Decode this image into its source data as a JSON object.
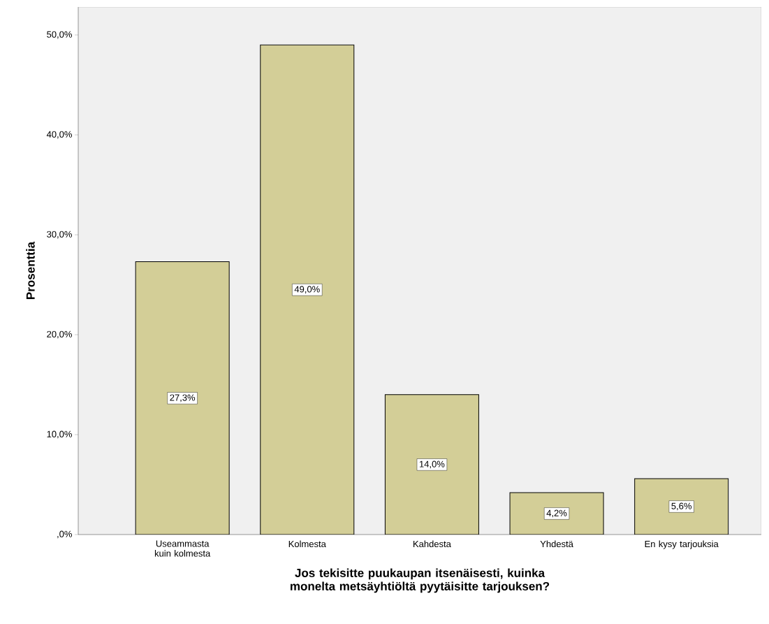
{
  "chart_data": {
    "type": "bar",
    "xlabel": "Jos tekisitte puukaupan itsenäisesti, kuinka monelta metsäyhtiöltä pyytäisitte tarjouksen?",
    "ylabel": "Prosenttia",
    "categories": [
      "Useammasta kuin kolmesta",
      "Kolmesta",
      "Kahdesta",
      "Yhdestä",
      "En kysy tarjouksia"
    ],
    "values": [
      27.3,
      49.0,
      14.0,
      4.2,
      5.6
    ],
    "value_labels": [
      "27,3%",
      "49,0%",
      "14,0%",
      "4,2%",
      "5,6%"
    ],
    "color": "#d3ce97",
    "ylim": [
      0,
      52.8
    ],
    "yticks": [
      {
        "value": 0,
        "label": ",0%"
      },
      {
        "value": 10,
        "label": "10,0%"
      },
      {
        "value": 20,
        "label": "20,0%"
      },
      {
        "value": 30,
        "label": "30,0%"
      },
      {
        "value": 40,
        "label": "40,0%"
      },
      {
        "value": 50,
        "label": "50,0%"
      }
    ],
    "grid": false
  }
}
